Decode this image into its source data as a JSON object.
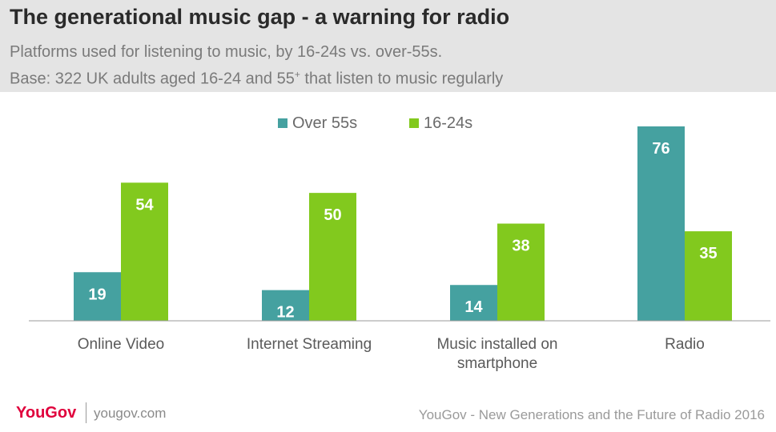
{
  "header": {
    "title": "The generational music gap - a warning for radio",
    "subtitle": "Platforms used for listening to music, by 16-24s vs. over-55s.",
    "base_prefix": "Base: 322 UK adults aged 16-24 and 55",
    "base_sup": "+",
    "base_suffix": " that listen to music regularly"
  },
  "chart_data": {
    "type": "bar",
    "categories": [
      "Online Video",
      "Internet Streaming",
      "Music installed on smartphone",
      "Radio"
    ],
    "category_lines": [
      [
        "Online Video"
      ],
      [
        "Internet Streaming"
      ],
      [
        "Music installed on",
        "smartphone"
      ],
      [
        "Radio"
      ]
    ],
    "series": [
      {
        "name": "Over 55s",
        "values": [
          19,
          12,
          14,
          76
        ],
        "color": "#45a1a0"
      },
      {
        "name": "16-24s",
        "values": [
          54,
          50,
          38,
          35
        ],
        "color": "#82c91e"
      }
    ],
    "ylim": [
      0,
      76
    ],
    "legend_position": "top-center",
    "data_labels": true,
    "grid": false
  },
  "footer": {
    "logo": "YouGov",
    "url": "yougov.com",
    "source": "YouGov - New Generations and the Future of Radio 2016"
  }
}
